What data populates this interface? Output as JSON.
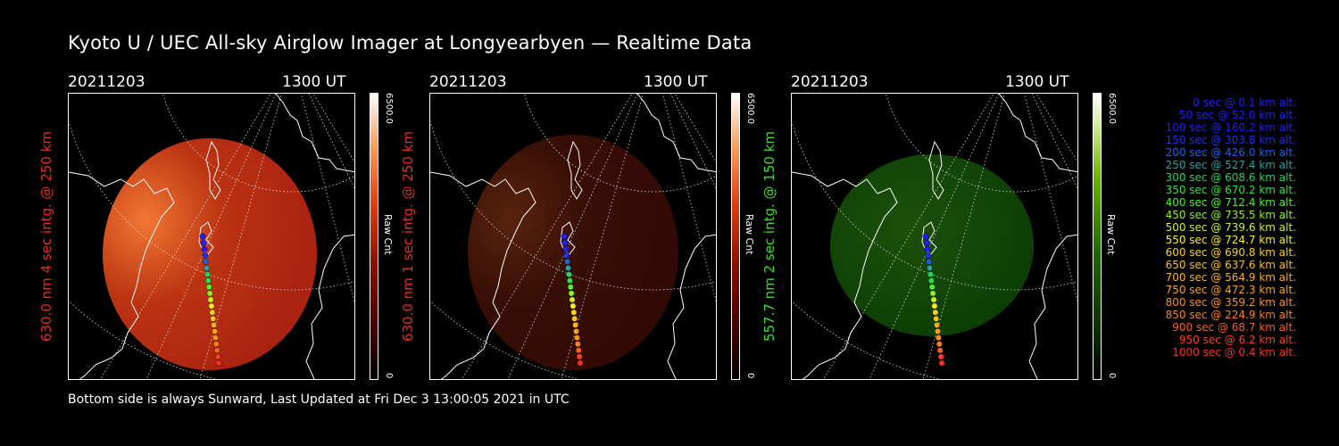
{
  "title": "Kyoto U / UEC All-sky Airglow Imager at Longyearbyen — Realtime Data",
  "footer": "Bottom side is always Sunward, Last Updated at Fri Dec  3 13:00:05 2021 in UTC",
  "panels": [
    {
      "date": "20211203",
      "time": "1300 UT",
      "ylabel": "630.0 nm 4 sec intg. @ 250 km",
      "ylabel_color": "#e0301e",
      "cbar_max": "6500.0",
      "cbar_min": "0",
      "cbar_unit": "Raw Cnt",
      "colorscale": "red",
      "brightness": 0.85
    },
    {
      "date": "20211203",
      "time": "1300 UT",
      "ylabel": "630.0 nm 1 sec intg. @ 250 km",
      "ylabel_color": "#e0301e",
      "cbar_max": "6500.0",
      "cbar_min": "0",
      "cbar_unit": "Raw Cnt",
      "colorscale": "red",
      "brightness": 0.25
    },
    {
      "date": "20211203",
      "time": "1300 UT",
      "ylabel": "557.7 nm 2 sec intg. @ 150 km",
      "ylabel_color": "#3ddc2a",
      "cbar_max": "6500.0",
      "cbar_min": "0",
      "cbar_unit": "Raw Cnt",
      "colorscale": "green",
      "brightness": 0.3
    }
  ],
  "legend": [
    {
      "text": "0 sec @   0.1 km alt.",
      "color": "#2020ff"
    },
    {
      "text": "50 sec @  52.0 km alt.",
      "color": "#2020ff"
    },
    {
      "text": "100 sec @ 160.2 km alt.",
      "color": "#2020ff"
    },
    {
      "text": "150 sec @ 303.8 km alt.",
      "color": "#2030f0"
    },
    {
      "text": "200 sec @ 426.0 km alt.",
      "color": "#2060e0"
    },
    {
      "text": "250 sec @ 527.4 km alt.",
      "color": "#2aa0a0"
    },
    {
      "text": "300 sec @ 608.6 km alt.",
      "color": "#2ad060"
    },
    {
      "text": "350 sec @ 670.2 km alt.",
      "color": "#30e040"
    },
    {
      "text": "400 sec @ 712.4 km alt.",
      "color": "#50f030"
    },
    {
      "text": "450 sec @ 735.5 km alt.",
      "color": "#90f020"
    },
    {
      "text": "500 sec @ 739.6 km alt.",
      "color": "#d0f020"
    },
    {
      "text": "550 sec @ 724.7 km alt.",
      "color": "#f8f020"
    },
    {
      "text": "600 sec @ 690.8 km alt.",
      "color": "#f8d020"
    },
    {
      "text": "650 sec @ 637.6 km alt.",
      "color": "#f8c020"
    },
    {
      "text": "700 sec @ 564.9 km alt.",
      "color": "#f8b020"
    },
    {
      "text": "750 sec @ 472.3 km alt.",
      "color": "#f8a020"
    },
    {
      "text": "800 sec @ 359.2 km alt.",
      "color": "#f89020"
    },
    {
      "text": "850 sec @ 224.9 km alt.",
      "color": "#f88020"
    },
    {
      "text": "900 sec @  68.7 km alt.",
      "color": "#f86020"
    },
    {
      "text": "950 sec @   6.2 km alt.",
      "color": "#f84020"
    },
    {
      "text": "1000 sec @   0.4 km alt.",
      "color": "#f83020"
    }
  ]
}
